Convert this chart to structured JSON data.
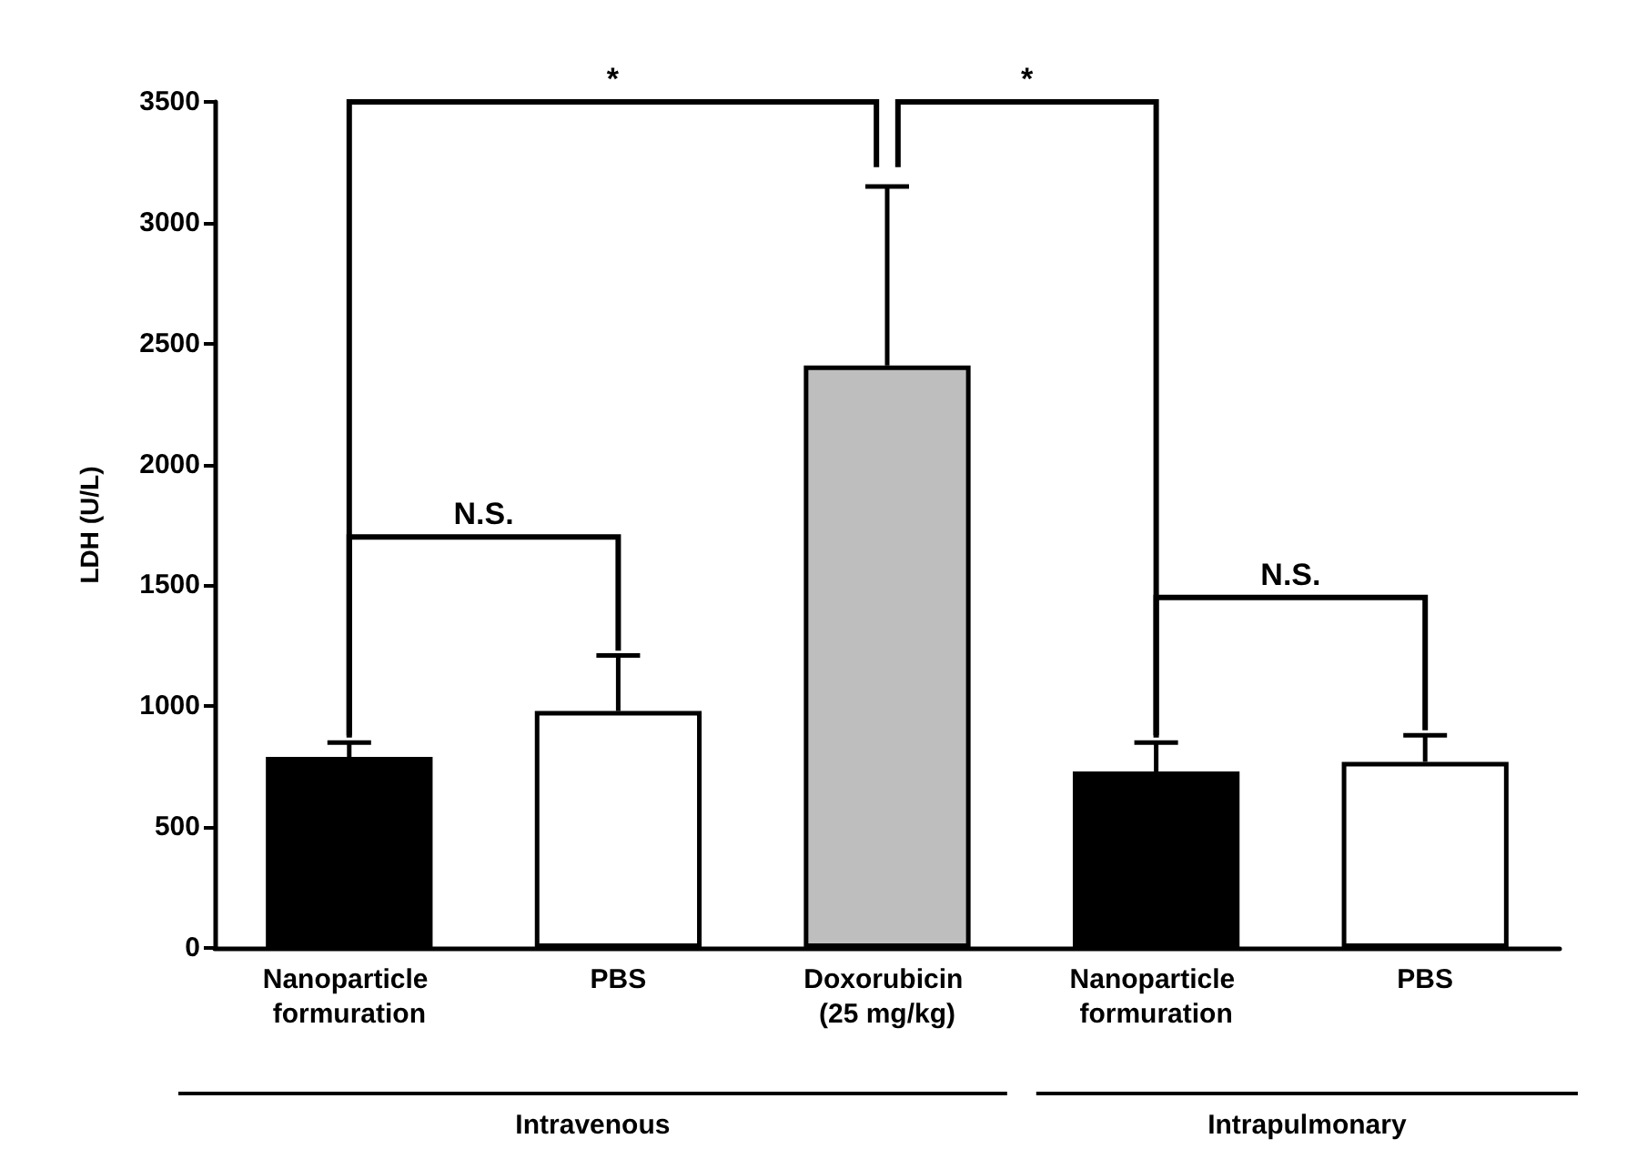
{
  "chart_data": {
    "type": "bar",
    "ylabel": "LDH (U/L)",
    "categories": [
      "Nanoparticle formuration",
      "PBS",
      "Doxorubicin (25 mg/kg)",
      "Nanoparticle formuration",
      "PBS"
    ],
    "values": [
      790,
      980,
      2410,
      730,
      770
    ],
    "colors": [
      "#000000",
      "#ffffff",
      "#bebebe",
      "#000000",
      "#ffffff"
    ],
    "errors": [
      [
        790,
        850
      ],
      [
        980,
        1210
      ],
      [
        2410,
        3150
      ],
      [
        730,
        850
      ],
      [
        770,
        880
      ]
    ],
    "ylim": [
      0,
      3500
    ],
    "yticks": [
      0,
      500,
      1000,
      1500,
      2000,
      2500,
      3000,
      3500
    ],
    "grid": false,
    "annotations": [
      "*",
      "*",
      "N.S.",
      "N.S.",
      "Intravenous",
      "Intrapulmonary"
    ]
  }
}
